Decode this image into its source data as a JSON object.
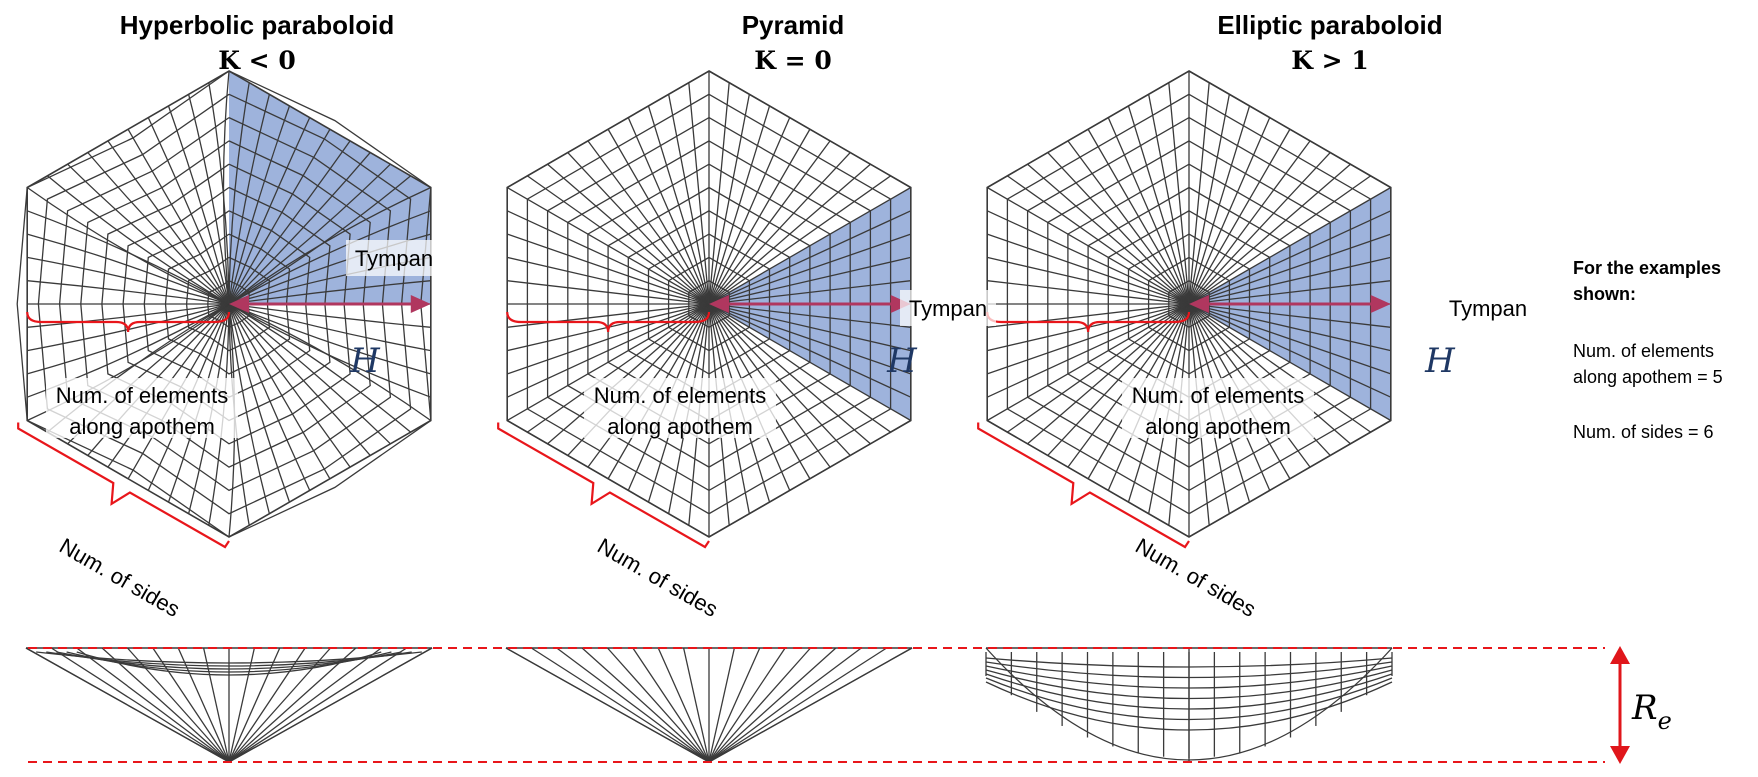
{
  "panels": [
    {
      "id": "hyperbolic",
      "title": "Hyperbolic paraboloid",
      "formula": "K < 0",
      "shape": "hyperbolic"
    },
    {
      "id": "pyramid",
      "title": "Pyramid",
      "formula": "K = 0",
      "shape": "pyramid"
    },
    {
      "id": "elliptic",
      "title": "Elliptic paraboloid",
      "formula": "K > 1",
      "shape": "elliptic"
    }
  ],
  "labels": {
    "tympan": "Tympan",
    "apothem_line1": "Num. of elements",
    "apothem_line2": "along apothem",
    "sides": "Num. of sides",
    "height_symbol": "H",
    "rise_symbol": "R",
    "rise_subscript": "e"
  },
  "side_note": {
    "heading_line1": "For the examples",
    "heading_line2": "shown:",
    "apothem_line1": "Num. of elements",
    "apothem_line2": "along apothem = 5",
    "sides": "Num. of sides = 6"
  },
  "mesh": {
    "num_sides": 6,
    "elements_along_apothem": 5
  },
  "colors": {
    "tympan_fill": "#9eb3dc",
    "arrow": "#b0375f",
    "bracket": "#e8161b",
    "dash": "#e8161b",
    "rise_arrow": "#e0161b",
    "symbol": "#1f3864"
  }
}
